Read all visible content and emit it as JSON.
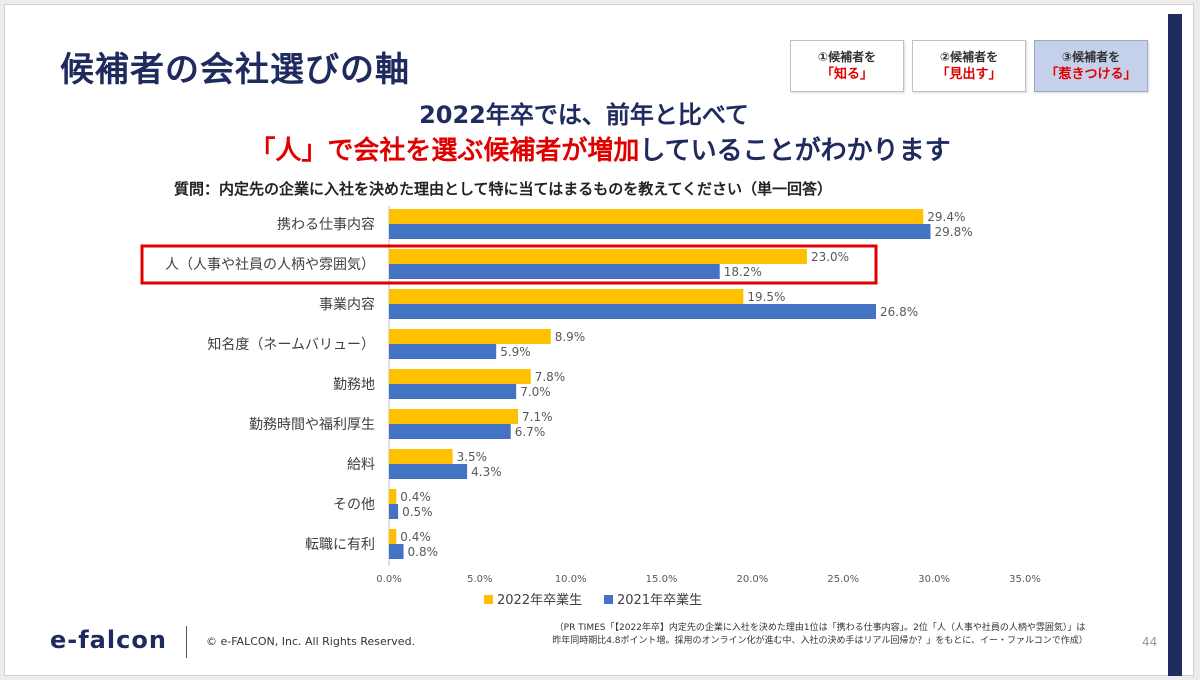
{
  "slide": {
    "title": "候補者の会社選びの軸",
    "stages": [
      {
        "line1": "①候補者を",
        "line2": "「知る」",
        "active": false
      },
      {
        "line1": "②候補者を",
        "line2": "「見出す」",
        "active": false
      },
      {
        "line1": "③候補者を",
        "line2": "「惹きつける」",
        "active": true
      }
    ],
    "headline_line1": "2022年卒では、前年と比べて",
    "headline_line2_red": "「人」で会社を選ぶ候補者が増加",
    "headline_line2_rest": "していることがわかります",
    "question": "質問：内定先の企業に入社を決めた理由として特に当てはまるものを教えてください（単一回答）"
  },
  "chart_data": {
    "type": "bar",
    "orientation": "horizontal",
    "categories": [
      "携わる仕事内容",
      "人（人事や社員の人柄や雰囲気）",
      "事業内容",
      "知名度（ネームバリュー）",
      "勤務地",
      "勤務時間や福利厚生",
      "給料",
      "その他",
      "転職に有利"
    ],
    "series": [
      {
        "name": "2022年卒業生",
        "color": "#ffc000",
        "values": [
          29.4,
          23.0,
          19.5,
          8.9,
          7.8,
          7.1,
          3.5,
          0.4,
          0.4
        ],
        "labels": [
          "29.4%",
          "23.0%",
          "19.5%",
          "8.9%",
          "7.8%",
          "7.1%",
          "3.5%",
          "0.4%",
          "0.4%"
        ]
      },
      {
        "name": "2021年卒業生",
        "color": "#4472c4",
        "values": [
          29.8,
          18.2,
          26.8,
          5.9,
          7.0,
          6.7,
          4.3,
          0.5,
          0.8
        ],
        "labels": [
          "29.8%",
          "18.2%",
          "26.8%",
          "5.9%",
          "7.0%",
          "6.7%",
          "4.3%",
          "0.5%",
          "0.8%"
        ]
      }
    ],
    "xlim": [
      0,
      35
    ],
    "xticks": [
      "0.0%",
      "5.0%",
      "10.0%",
      "15.0%",
      "20.0%",
      "25.0%",
      "30.0%",
      "35.0%"
    ],
    "highlight_category": "人（人事や社員の人柄や雰囲気）",
    "highlight_color": "#e00000",
    "legend": "bottom"
  },
  "footer": {
    "logo": "e-falcon",
    "copyright": "© e-FALCON, Inc. All Rights Reserved.",
    "source_line1": "（PR TIMES「【2022年卒】内定先の企業に入社を決めた理由1位は「携わる仕事内容」。2位「人（人事や社員の人柄や雰囲気）」は",
    "source_line2": "昨年同時期比4.8ポイント増。採用のオンライン化が進む中、入社の決め手はリアル回帰か？」をもとに、イー・ファルコンで作成）",
    "page": "44"
  },
  "colors": {
    "navy": "#1f2a5e",
    "accent_red": "#e00000"
  }
}
